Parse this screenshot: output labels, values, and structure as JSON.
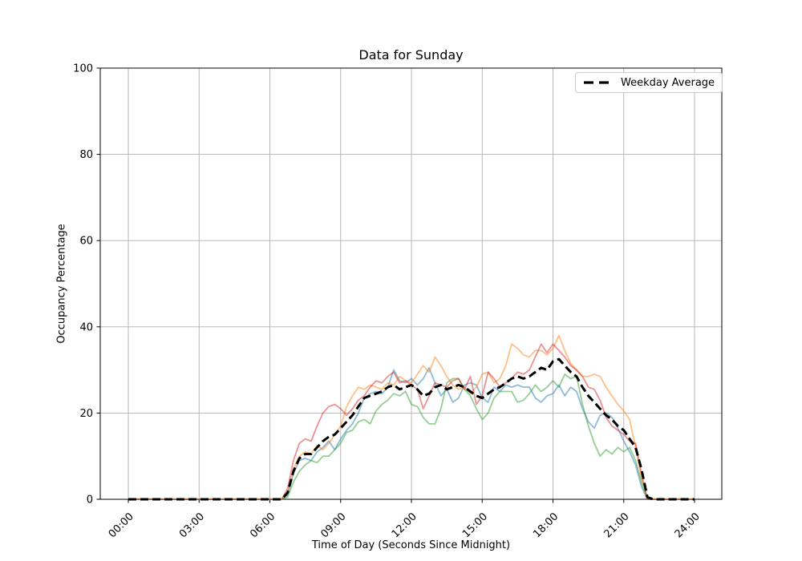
{
  "chart_data": {
    "type": "line",
    "title": "Data for Sunday",
    "xlabel": "Time of Day (Seconds Since Midnight)",
    "ylabel": "Occupancy Percentage",
    "legend_label": "Weekday Average",
    "legend_position": "upper right",
    "grid": true,
    "grid_color": "#b0b0b0",
    "ylim": [
      0,
      100
    ],
    "y_ticks": [
      0,
      20,
      40,
      60,
      80,
      100
    ],
    "x_tick_hours": [
      0,
      3,
      6,
      9,
      12,
      15,
      18,
      21,
      24
    ],
    "x_tick_labels": [
      "00:00",
      "03:00",
      "06:00",
      "09:00",
      "12:00",
      "15:00",
      "18:00",
      "21:00",
      "24:00"
    ],
    "x_start_hour": 0,
    "x_step_hours": 0.25,
    "series": [
      {
        "name": "sunday-line-1",
        "color": "#1f77b4",
        "alpha": 0.5,
        "width": 1.8,
        "style": "solid",
        "values": [
          0,
          0,
          0,
          0,
          0,
          0,
          0,
          0,
          0,
          0,
          0,
          0,
          0,
          0,
          0,
          0,
          0,
          0,
          0,
          0,
          0,
          0,
          0,
          0,
          0,
          0,
          0,
          1,
          6,
          9,
          9.5,
          9,
          11,
          12,
          13.5,
          11.5,
          14,
          16,
          17.5,
          20,
          23.5,
          24.5,
          25,
          24.5,
          26,
          30,
          27.5,
          27,
          28,
          26.5,
          28,
          30.5,
          27,
          24,
          25.5,
          22.5,
          23.5,
          26.5,
          27,
          26.5,
          23.5,
          22.5,
          26,
          25,
          26.5,
          26,
          26.5,
          26,
          26,
          23.5,
          22.5,
          24,
          24.5,
          26.5,
          24,
          26,
          25,
          21,
          18,
          16.5,
          19.5,
          20,
          19,
          16.5,
          13.5,
          11,
          8,
          3,
          0,
          0,
          0,
          0,
          0,
          0,
          0,
          0,
          0
        ]
      },
      {
        "name": "sunday-line-2",
        "color": "#ff7f0e",
        "alpha": 0.5,
        "width": 1.8,
        "style": "solid",
        "values": [
          0,
          0,
          0,
          0,
          0,
          0,
          0,
          0,
          0,
          0,
          0,
          0,
          0,
          0,
          0,
          0,
          0,
          0,
          0,
          0,
          0,
          0,
          0,
          0,
          0,
          0,
          0,
          1.5,
          7,
          10,
          11,
          10.5,
          12.5,
          11.5,
          13,
          15,
          17,
          21.5,
          24,
          26,
          25.5,
          26.5,
          26,
          25.5,
          27,
          26.5,
          28.5,
          27.5,
          27,
          29,
          31,
          29.5,
          33,
          31,
          28.5,
          26.5,
          25.5,
          26,
          24.5,
          26,
          29,
          29.5,
          27,
          28,
          31,
          36,
          35,
          33.5,
          33,
          34.5,
          34.5,
          33.5,
          35,
          38,
          34.5,
          31.5,
          30,
          28.5,
          28.5,
          29,
          28.5,
          26,
          24,
          22,
          20.5,
          18.5,
          12,
          5,
          0,
          0,
          0,
          0,
          0,
          0,
          0,
          0,
          0
        ]
      },
      {
        "name": "sunday-line-3",
        "color": "#2ca02c",
        "alpha": 0.5,
        "width": 1.8,
        "style": "solid",
        "values": [
          0,
          0,
          0,
          0,
          0,
          0,
          0,
          0,
          0,
          0,
          0,
          0,
          0,
          0,
          0,
          0,
          0,
          0,
          0,
          0,
          0,
          0,
          0,
          0,
          0,
          0,
          0,
          0.5,
          4,
          6.5,
          8,
          9,
          8.5,
          10,
          10,
          11.5,
          13,
          15.5,
          16,
          18,
          18.5,
          17.5,
          20.5,
          22,
          23,
          24.5,
          24,
          25,
          22,
          21.5,
          19,
          17.5,
          17.5,
          21,
          27,
          28,
          28,
          25.5,
          24,
          21,
          18.5,
          20,
          23.5,
          25,
          25,
          25,
          22.5,
          23,
          24.5,
          26.5,
          25,
          26,
          27.5,
          26,
          29,
          28,
          28.5,
          22,
          17,
          13,
          10,
          11.5,
          10.5,
          12,
          11,
          12,
          9,
          4,
          0,
          0,
          0,
          0,
          0,
          0,
          0,
          0,
          0
        ]
      },
      {
        "name": "sunday-line-4",
        "color": "#d62728",
        "alpha": 0.5,
        "width": 1.8,
        "style": "solid",
        "values": [
          0,
          0,
          0,
          0,
          0,
          0,
          0,
          0,
          0,
          0,
          0,
          0,
          0,
          0,
          0,
          0,
          0,
          0,
          0,
          0,
          0,
          0,
          0,
          0,
          0,
          0,
          0,
          2.5,
          9,
          13,
          14,
          13.5,
          17,
          20,
          21.5,
          22,
          21,
          19.5,
          21,
          23,
          24,
          26,
          27.5,
          27,
          28.5,
          29.5,
          27,
          27.5,
          26.5,
          25.5,
          21,
          24,
          27,
          26.5,
          26,
          27.5,
          28,
          25.5,
          28.5,
          22,
          24,
          29.5,
          28,
          26,
          27,
          28,
          29.5,
          29,
          30,
          33,
          36,
          34,
          36,
          34.5,
          33,
          31,
          30,
          28.5,
          26,
          25.5,
          23,
          19,
          17,
          16,
          15,
          13.5,
          13,
          6,
          0,
          0,
          0,
          0,
          0,
          0,
          0,
          0,
          0
        ]
      },
      {
        "name": "weekday-average-line",
        "color": "#000000",
        "alpha": 1,
        "width": 3,
        "style": "dashed",
        "values": [
          0,
          0,
          0,
          0,
          0,
          0,
          0,
          0,
          0,
          0,
          0,
          0,
          0,
          0,
          0,
          0,
          0,
          0,
          0,
          0,
          0,
          0,
          0,
          0,
          0,
          0,
          0,
          1.5,
          6.5,
          9.5,
          10.5,
          10.5,
          12,
          13.5,
          14.5,
          15,
          16.5,
          18,
          19.5,
          21.5,
          23.5,
          24,
          24.5,
          25,
          26,
          26.5,
          25.5,
          26,
          26.5,
          25.5,
          24,
          24.5,
          26,
          26.5,
          25.5,
          26,
          26.5,
          26,
          25,
          24,
          23.5,
          24.5,
          25.5,
          26,
          27,
          28,
          28.5,
          28,
          28.5,
          29.5,
          30.5,
          30,
          32,
          32.5,
          31,
          29.5,
          28.5,
          26,
          24,
          22.5,
          21,
          19.5,
          18.5,
          17,
          16,
          14,
          12,
          7,
          0.5,
          0,
          0,
          0,
          0,
          0,
          0,
          0,
          0
        ]
      }
    ]
  }
}
